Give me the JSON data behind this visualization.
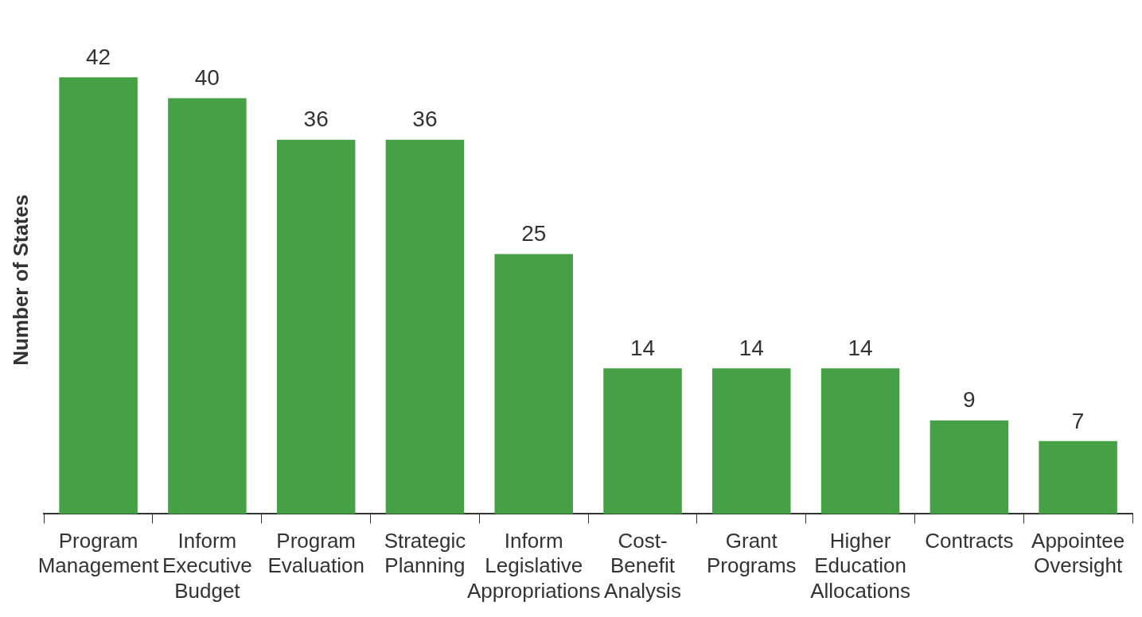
{
  "chart_data": {
    "type": "bar",
    "ylabel": "Number of States",
    "categories": [
      "Program Management",
      "Inform Executive Budget",
      "Program Evaluation",
      "Strategic Planning",
      "Inform Legislative Appropriations",
      "Cost-Benefit Analysis",
      "Grant Programs",
      "Higher Education Allocations",
      "Contracts",
      "Appointee Oversight"
    ],
    "values": [
      42,
      40,
      36,
      36,
      25,
      14,
      14,
      14,
      9,
      7
    ],
    "color": "#46a046",
    "data_labels": true,
    "grid": false,
    "legend": false
  }
}
